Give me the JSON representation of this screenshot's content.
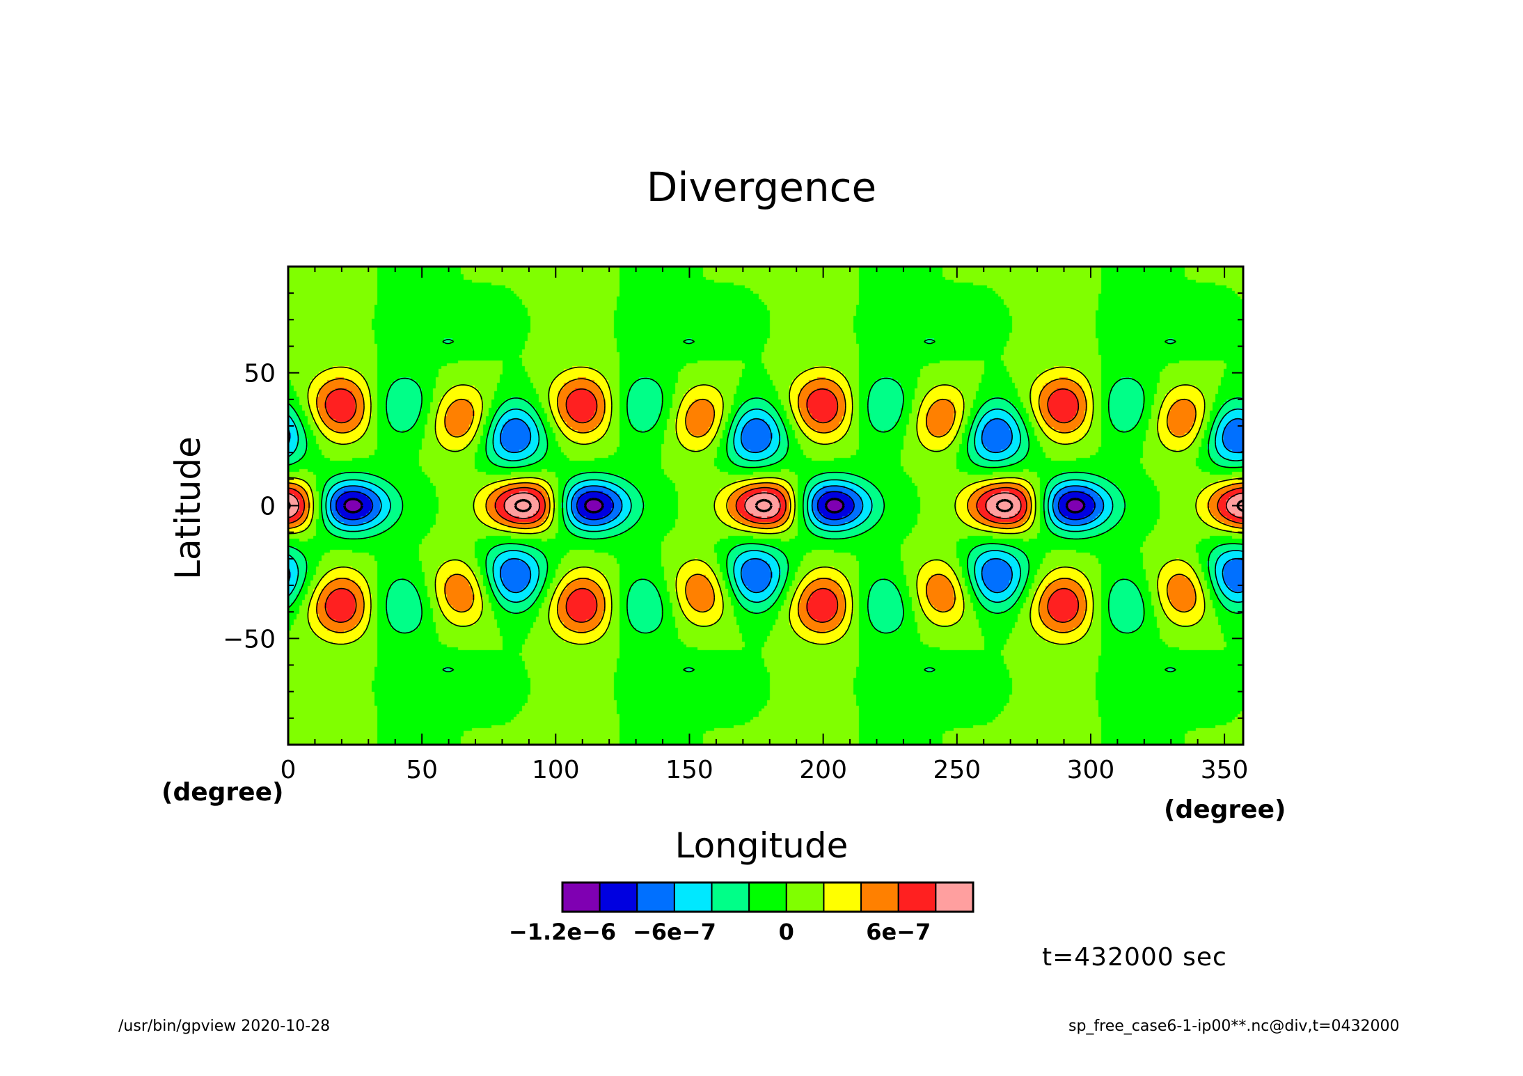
{
  "title": "Divergence",
  "time_label": "t=432000 sec",
  "footer": {
    "left": "/usr/bin/gpview   2020-10-28",
    "right": "sp_free_case6-1-ip00**.nc@div,t=0432000"
  },
  "chart_data": {
    "type": "heatmap",
    "title": "Divergence",
    "xlabel": "Longitude",
    "ylabel": "Latitude",
    "x_unit": "(degree)",
    "y_unit": "(degree)",
    "xlim": [
      0,
      357
    ],
    "ylim": [
      -90,
      90
    ],
    "x_ticks": [
      0,
      50,
      100,
      150,
      200,
      250,
      300,
      350
    ],
    "y_ticks": [
      -50,
      0,
      50
    ],
    "x_tick_labels": [
      "0",
      "50",
      "100",
      "150",
      "200",
      "250",
      "300",
      "350"
    ],
    "y_tick_labels": [
      "−50",
      "0",
      "50"
    ],
    "contour_interval": 2e-07,
    "field": {
      "zonal_wavenumber": 4,
      "features": [
        {
          "kind": "positive-max",
          "lon": 0,
          "lat": 0,
          "value": 1.2e-06
        },
        {
          "kind": "negative-min",
          "lon": 22,
          "lat": 0,
          "value": -1.2e-06
        },
        {
          "kind": "positive-max",
          "lon": 20,
          "lat": 38,
          "value": 9e-07
        },
        {
          "kind": "positive-max",
          "lon": 20,
          "lat": -38,
          "value": 9e-07
        },
        {
          "kind": "positive-max",
          "lon": 65,
          "lat": 33,
          "value": 7e-07
        },
        {
          "kind": "positive-max",
          "lon": 65,
          "lat": -33,
          "value": 7e-07
        },
        {
          "kind": "negative-min",
          "lon": 84,
          "lat": 27,
          "value": -9e-07
        },
        {
          "kind": "negative-min",
          "lon": 84,
          "lat": -27,
          "value": -9e-07
        },
        {
          "kind": "negative-min",
          "lon": 43,
          "lat": 38,
          "value": -5e-07
        },
        {
          "kind": "negative-min",
          "lon": 43,
          "lat": -38,
          "value": -5e-07
        },
        {
          "kind": "negative-min",
          "lon": 60,
          "lat": 62,
          "value": -3e-07
        },
        {
          "kind": "negative-min",
          "lon": 60,
          "lat": -62,
          "value": -3e-07
        }
      ]
    },
    "legend": {
      "type": "colorbar",
      "levels": [
        -1.2e-06,
        -1e-06,
        -8e-07,
        -6e-07,
        -4e-07,
        -2e-07,
        0,
        2e-07,
        4e-07,
        6e-07,
        8e-07,
        1e-06
      ],
      "colors": [
        "#7f00b2",
        "#0000e0",
        "#0070ff",
        "#00e8ff",
        "#00ff88",
        "#00ff00",
        "#80ff00",
        "#ffff00",
        "#ff8000",
        "#ff2020",
        "#ff9f9f"
      ],
      "tick_labels": [
        {
          "level": -1.2e-06,
          "text": "−1.2e−6"
        },
        {
          "level": -6e-07,
          "text": "−6e−7"
        },
        {
          "level": 0,
          "text": "0"
        },
        {
          "level": 6e-07,
          "text": "6e−7"
        }
      ]
    }
  }
}
